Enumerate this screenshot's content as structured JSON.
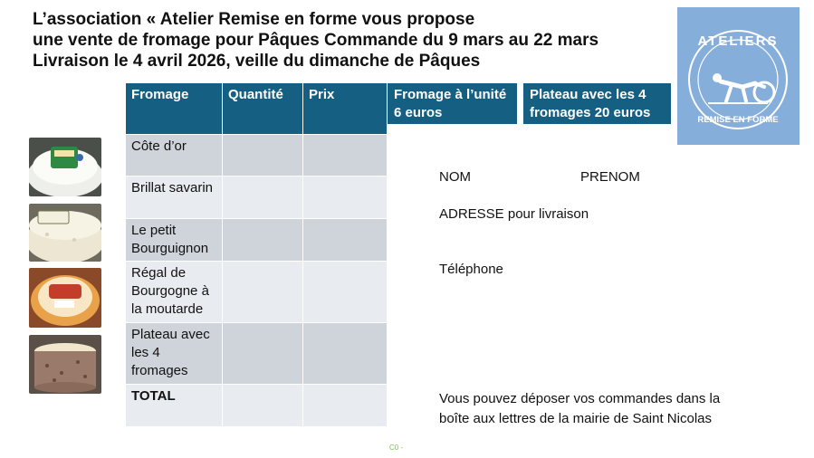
{
  "title": {
    "line1": "L’association « Atelier Remise en forme vous propose",
    "line2": "une vente de fromage pour Pâques Commande du 9 mars au 22 mars",
    "line3": "Livraison le 4 avril 2026, veille du dimanche de Pâques"
  },
  "logo": {
    "text_top": "ATELIERS",
    "text_bottom": "REMISE EN FORME",
    "bg_color": "#86aedb"
  },
  "table": {
    "headers": [
      "Fromage",
      "Quantité",
      "Prix"
    ],
    "rows": [
      {
        "fromage": "Côte d’or",
        "quantite": "",
        "prix": ""
      },
      {
        "fromage": "Brillat savarin",
        "quantite": "",
        "prix": ""
      },
      {
        "fromage": "Le petit Bourguignon",
        "quantite": "",
        "prix": ""
      },
      {
        "fromage": "Régal de Bourgogne à la moutarde",
        "quantite": "",
        "prix": ""
      },
      {
        "fromage": "Plateau avec les 4 fromages",
        "quantite": "",
        "prix": ""
      }
    ],
    "total_label": "TOTAL",
    "header_color": "#156082"
  },
  "prices": {
    "unit": "Fromage à l’unité 6 euros",
    "plateau": "Plateau avec les 4 fromages 20 euros"
  },
  "form": {
    "nom": "NOM",
    "prenom": "PRENOM",
    "adresse": "ADRESSE pour livraison",
    "telephone": "Téléphone",
    "deposit_line1": "Vous pouvez déposer vos commandes dans la",
    "deposit_line2": "boîte aux lettres de la mairie de Saint Nicolas"
  },
  "footer": {
    "classification": "C0 -"
  },
  "images": [
    "cote-dor-cheese-photo",
    "brillat-savarin-cheese-photo",
    "petit-bourguignon-cheese-photo",
    "plateau-cheese-photo"
  ]
}
